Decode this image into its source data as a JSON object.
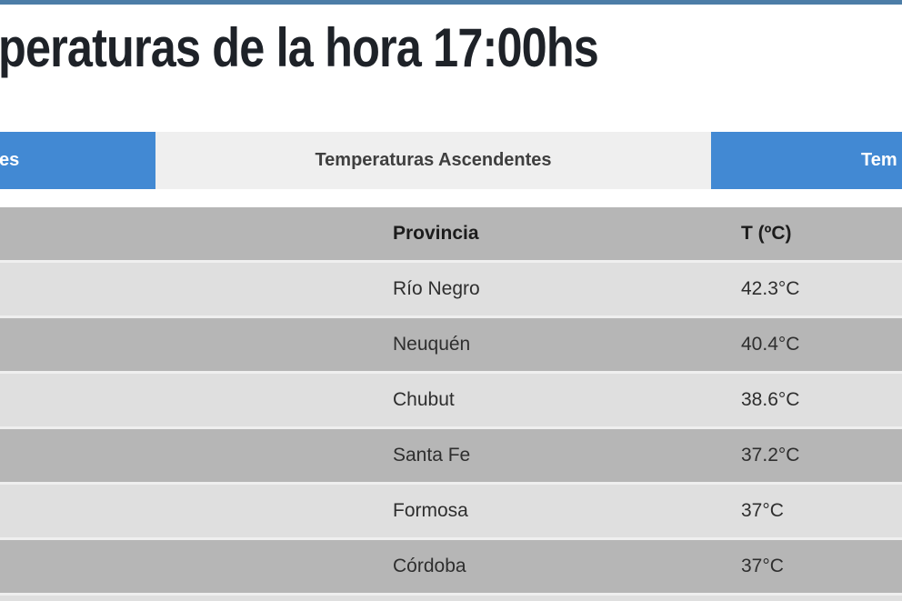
{
  "colors": {
    "top_accent_bar": "#4c7da7",
    "tab_active_blue": "#4289d3",
    "tab_inactive_bg": "#efefef",
    "table_header_gray": "#b6b6b6",
    "row_light_gray": "#dfdfdf",
    "row_dark_gray": "#b6b6b6",
    "title_text": "#1e2228"
  },
  "page": {
    "title_visible": "peraturas de la hora 17:00hs"
  },
  "tabs": {
    "left": {
      "label_visible": "es"
    },
    "middle": {
      "label": "Temperaturas Ascendentes"
    },
    "right": {
      "label_visible": "Tem"
    }
  },
  "table": {
    "columns": {
      "province": "Provincia",
      "temperature": "T (ºC)"
    },
    "rows": [
      {
        "province": "Río Negro",
        "temp": "42.3°C"
      },
      {
        "province": "Neuquén",
        "temp": "40.4°C"
      },
      {
        "province": "Chubut",
        "temp": "38.6°C"
      },
      {
        "province": "Santa Fe",
        "temp": "37.2°C"
      },
      {
        "province": "Formosa",
        "temp": "37°C"
      },
      {
        "province": "Córdoba",
        "temp": "37°C"
      }
    ]
  }
}
